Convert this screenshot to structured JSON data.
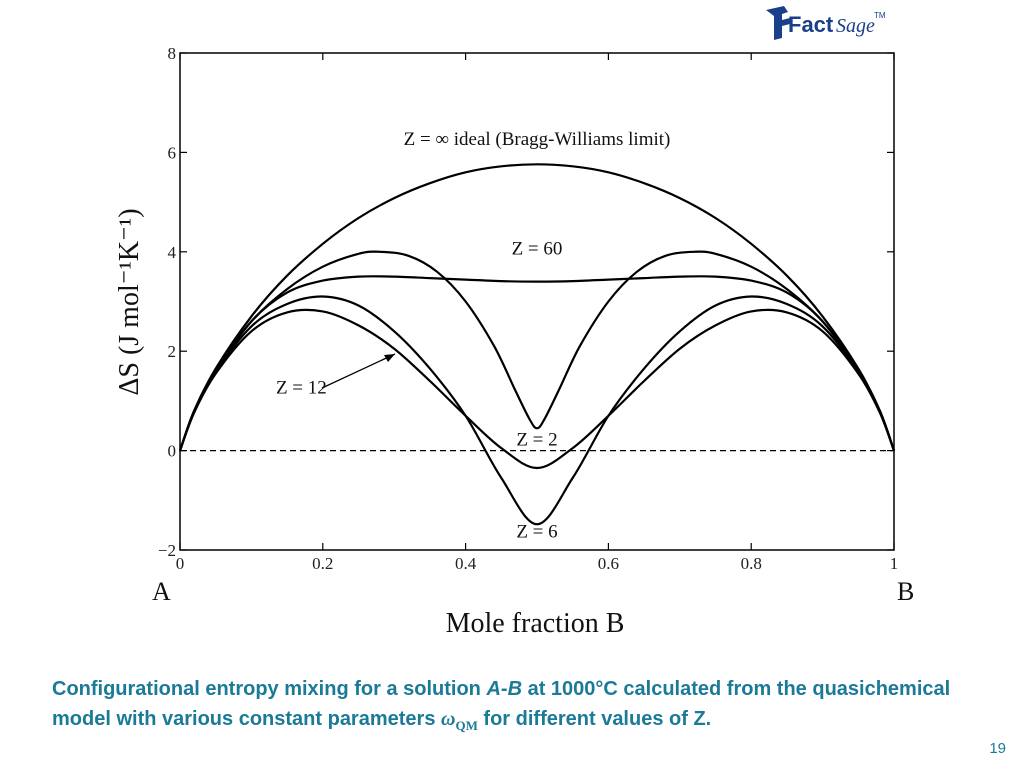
{
  "logo": {
    "text_bold": "Fact",
    "text_script": "Sage",
    "tm": "TM",
    "colors": {
      "bold": "#1b3f8a",
      "script": "#1b3f8a"
    }
  },
  "caption": {
    "part1": "Configurational entropy mixing for a solution ",
    "italic1": "A",
    "dash": "-",
    "italic2": "B",
    "part2": " at 1000°C calculated from the quasichemical model with various constant parameters ",
    "omega": "ω",
    "omega_sub": "QM",
    "part3": " for different values of Z."
  },
  "page_number": "19",
  "colors": {
    "caption": "#1a7a97",
    "curve": "#000000"
  },
  "chart_data": {
    "type": "line",
    "title": "",
    "xlabel": "Mole fraction B",
    "ylabel": "ΔS (J mol⁻¹K⁻¹)",
    "xlim": [
      0,
      1
    ],
    "ylim": [
      -2,
      8
    ],
    "x_ticks": [
      "0",
      "0.2",
      "0.4",
      "0.6",
      "0.8",
      "1"
    ],
    "y_ticks": [
      "−2",
      "0",
      "2",
      "4",
      "6",
      "8"
    ],
    "end_labels": {
      "left": "A",
      "right": "B"
    },
    "reference_line": {
      "y": 0,
      "style": "dashed"
    },
    "annotations": [
      {
        "text": "Z = ∞ ideal (Bragg-Williams limit)",
        "x": 0.5,
        "y": 6.15
      },
      {
        "text": "Z = 60",
        "x": 0.5,
        "y": 3.95
      },
      {
        "text": "Z = 12",
        "x": 0.17,
        "y": 1.15
      },
      {
        "text": "Z = 2",
        "x": 0.5,
        "y": 0.1
      },
      {
        "text": "Z = 6",
        "x": 0.5,
        "y": -1.75
      }
    ],
    "series": [
      {
        "x": [
          0,
          0.02,
          0.05,
          0.1,
          0.15,
          0.2,
          0.25,
          0.3,
          0.35,
          0.4,
          0.45,
          0.5,
          0.55,
          0.6,
          0.65,
          0.7,
          0.75,
          0.8,
          0.85,
          0.9,
          0.95,
          0.98,
          1
        ],
        "y": [
          0,
          0.81,
          1.65,
          2.7,
          3.52,
          4.16,
          4.68,
          5.08,
          5.38,
          5.6,
          5.72,
          5.76,
          5.72,
          5.6,
          5.38,
          5.08,
          4.68,
          4.16,
          3.52,
          2.7,
          1.65,
          0.81,
          0
        ]
      },
      {
        "x": [
          0,
          0.02,
          0.05,
          0.1,
          0.15,
          0.2,
          0.25,
          0.28,
          0.32,
          0.36,
          0.4,
          0.44,
          0.47,
          0.49,
          0.5,
          0.51,
          0.53,
          0.56,
          0.6,
          0.64,
          0.68,
          0.72,
          0.75,
          0.8,
          0.85,
          0.9,
          0.95,
          0.98,
          1
        ],
        "y": [
          0,
          0.8,
          1.62,
          2.6,
          3.25,
          3.7,
          3.96,
          4.0,
          3.92,
          3.6,
          3.0,
          2.1,
          1.2,
          0.62,
          0.45,
          0.62,
          1.2,
          2.1,
          3.0,
          3.6,
          3.92,
          4.0,
          3.96,
          3.7,
          3.25,
          2.6,
          1.62,
          0.8,
          0
        ]
      },
      {
        "x": [
          0,
          0.02,
          0.05,
          0.1,
          0.15,
          0.2,
          0.25,
          0.3,
          0.35,
          0.4,
          0.45,
          0.5,
          0.55,
          0.6,
          0.65,
          0.7,
          0.75,
          0.8,
          0.85,
          0.9,
          0.95,
          0.98,
          1
        ],
        "y": [
          0,
          0.8,
          1.6,
          2.6,
          3.18,
          3.42,
          3.5,
          3.5,
          3.47,
          3.44,
          3.41,
          3.4,
          3.41,
          3.44,
          3.47,
          3.5,
          3.5,
          3.42,
          3.18,
          2.6,
          1.6,
          0.8,
          0
        ]
      },
      {
        "x": [
          0,
          0.02,
          0.05,
          0.1,
          0.15,
          0.2,
          0.25,
          0.3,
          0.35,
          0.4,
          0.45,
          0.5,
          0.55,
          0.6,
          0.65,
          0.7,
          0.75,
          0.8,
          0.85,
          0.9,
          0.95,
          0.98,
          1
        ],
        "y": [
          0,
          0.78,
          1.58,
          2.5,
          2.95,
          3.1,
          2.92,
          2.4,
          1.65,
          0.7,
          -0.55,
          -1.48,
          -0.55,
          0.7,
          1.65,
          2.4,
          2.92,
          3.1,
          2.95,
          2.5,
          1.58,
          0.78,
          0
        ]
      },
      {
        "x": [
          0,
          0.02,
          0.05,
          0.1,
          0.15,
          0.2,
          0.25,
          0.3,
          0.35,
          0.4,
          0.45,
          0.5,
          0.55,
          0.6,
          0.65,
          0.7,
          0.75,
          0.8,
          0.85,
          0.9,
          0.95,
          0.98,
          1
        ],
        "y": [
          0,
          0.77,
          1.55,
          2.4,
          2.78,
          2.8,
          2.52,
          2.05,
          1.4,
          0.7,
          0.05,
          -0.35,
          0.05,
          0.7,
          1.4,
          2.05,
          2.52,
          2.8,
          2.78,
          2.4,
          1.55,
          0.77,
          0
        ]
      }
    ]
  }
}
